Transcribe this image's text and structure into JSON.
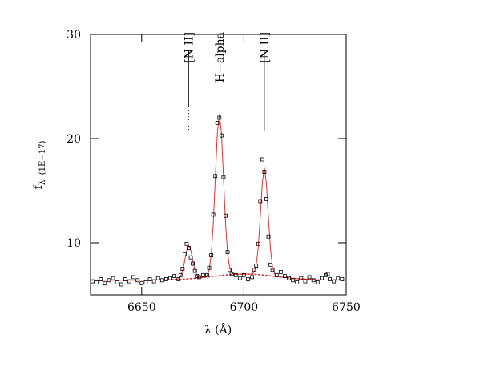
{
  "chart_data": {
    "type": "scatter",
    "xlabel": "λ  (Å)",
    "ylabel": {
      "main": "f",
      "sub": "λ",
      "unit": "(1E−17)"
    },
    "xlim": [
      6625,
      6750
    ],
    "ylim": [
      5,
      30
    ],
    "xticks": [
      6650,
      6700,
      6750
    ],
    "yticks": [
      10,
      20,
      30
    ],
    "points": {
      "color": "#000000",
      "x": [
        6626,
        6628,
        6630,
        6632,
        6634,
        6636,
        6638,
        6640,
        6642,
        6644,
        6646,
        6648,
        6650,
        6652,
        6654,
        6656,
        6658,
        6660,
        6662,
        6664,
        6666,
        6668,
        6669,
        6670,
        6671,
        6672,
        6673,
        6674,
        6675,
        6676,
        6677,
        6678,
        6680,
        6682,
        6683,
        6684,
        6685,
        6686,
        6687,
        6688,
        6689,
        6690,
        6691,
        6692,
        6693,
        6694,
        6696,
        6698,
        6700,
        6702,
        6704,
        6705,
        6706,
        6707,
        6708,
        6709,
        6710,
        6711,
        6712,
        6713,
        6714,
        6716,
        6718,
        6720,
        6722,
        6724,
        6726,
        6728,
        6730,
        6732,
        6734,
        6736,
        6738,
        6740,
        6741,
        6742,
        6744,
        6746,
        6748
      ],
      "y": [
        6.3,
        6.2,
        6.5,
        6.1,
        6.4,
        6.6,
        6.2,
        6.0,
        6.5,
        6.3,
        6.7,
        6.4,
        6.1,
        6.2,
        6.5,
        6.3,
        6.6,
        6.4,
        6.5,
        6.6,
        6.8,
        6.5,
        6.9,
        7.5,
        8.9,
        9.9,
        9.5,
        8.6,
        8.0,
        7.3,
        6.8,
        6.7,
        6.9,
        6.9,
        7.6,
        8.8,
        12.7,
        16.4,
        21.5,
        22.0,
        20.3,
        16.3,
        12.6,
        9.1,
        7.4,
        7.0,
        6.9,
        6.6,
        6.9,
        6.5,
        6.7,
        7.4,
        7.8,
        9.9,
        14.0,
        18.0,
        16.8,
        14.2,
        10.6,
        7.9,
        7.4,
        6.9,
        7.2,
        6.8,
        6.6,
        6.4,
        6.2,
        6.6,
        6.3,
        6.7,
        6.4,
        6.2,
        6.6,
        6.9,
        7.0,
        6.5,
        6.3,
        6.6,
        6.5
      ]
    },
    "fit": {
      "color": "#e03030",
      "x": [
        6625,
        6635,
        6645,
        6655,
        6660,
        6665,
        6666,
        6667,
        6668,
        6669,
        6670,
        6671,
        6672,
        6673,
        6674,
        6675,
        6676,
        6677,
        6678,
        6679,
        6680,
        6681,
        6682,
        6683,
        6684,
        6685,
        6686,
        6687,
        6688,
        6689,
        6690,
        6691,
        6692,
        6693,
        6694,
        6695,
        6696,
        6697,
        6698,
        6699,
        6700,
        6701,
        6702,
        6703,
        6704,
        6705,
        6706,
        6707,
        6708,
        6709,
        6710,
        6711,
        6712,
        6713,
        6714,
        6715,
        6716,
        6717,
        6720,
        6725,
        6735,
        6745,
        6750
      ],
      "y": [
        6.4,
        6.4,
        6.4,
        6.41,
        6.42,
        6.45,
        6.46,
        6.48,
        6.54,
        6.75,
        7.29,
        8.23,
        9.26,
        9.73,
        9.29,
        8.29,
        7.38,
        6.87,
        6.69,
        6.65,
        6.67,
        6.71,
        6.88,
        7.41,
        8.84,
        11.82,
        16.21,
        20.49,
        22.35,
        20.54,
        16.3,
        11.95,
        9.02,
        7.62,
        7.13,
        7.0,
        6.98,
        6.99,
        7.0,
        7.0,
        7.0,
        7.0,
        7.0,
        6.99,
        7.02,
        7.19,
        7.84,
        9.5,
        12.48,
        15.74,
        17.19,
        15.7,
        12.4,
        9.38,
        7.68,
        7.0,
        6.79,
        6.73,
        6.66,
        6.57,
        6.45,
        6.41,
        6.4
      ]
    },
    "continuum": {
      "color": "#e03030",
      "style": "dotted",
      "x": [
        6665,
        6670,
        6675,
        6680,
        6685,
        6690,
        6695,
        6700,
        6705,
        6710,
        6715,
        6720,
        6725,
        6730,
        6735
      ],
      "y": [
        6.45,
        6.49,
        6.57,
        6.66,
        6.78,
        6.89,
        6.97,
        7.0,
        6.97,
        6.89,
        6.78,
        6.66,
        6.57,
        6.49,
        6.45
      ]
    },
    "annotations": [
      {
        "text": "[N II]",
        "x": 6673
      },
      {
        "text": "H−alpha",
        "x": 6688
      },
      {
        "text": "[N II]",
        "x": 6710
      }
    ]
  }
}
